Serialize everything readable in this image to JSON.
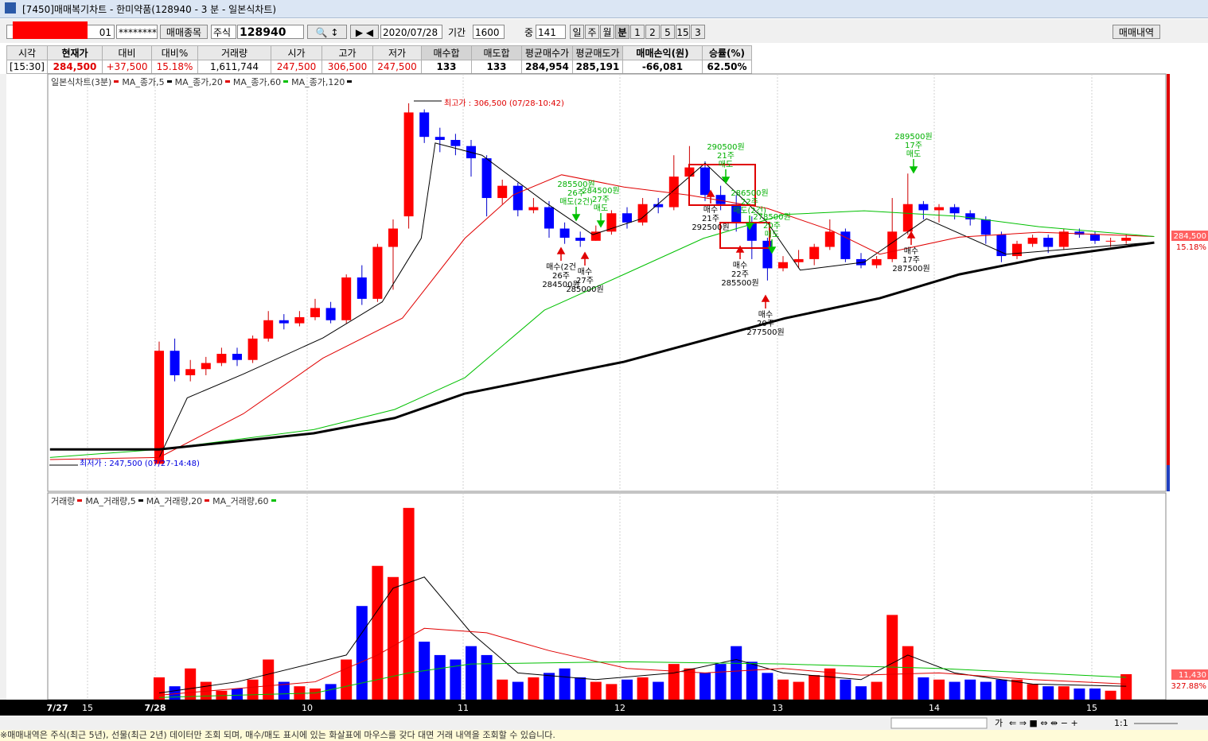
{
  "window": {
    "title": "[7450]매매복기차트 - 한미약품(128940 - 3 분 - 일본식차트)"
  },
  "toolbar": {
    "account": "01",
    "password": "********",
    "stock_button": "매매종목",
    "market": "주식",
    "code": "128940",
    "date": "2020/07/28",
    "period_label": "기간",
    "period": "1600",
    "mid_label": "중",
    "mid": "141",
    "units": [
      "일",
      "주",
      "월",
      "분",
      "1",
      "2",
      "5",
      "15",
      "3"
    ],
    "trade_history": "매매내역"
  },
  "info": {
    "headers": [
      "시각",
      "현재가",
      "대비",
      "대비%",
      "거래량",
      "시가",
      "고가",
      "저가",
      "매수합",
      "매도합",
      "평균매수가",
      "평균매도가",
      "매매손익(원)",
      "승률(%)"
    ],
    "values": [
      "[15:30]",
      "284,500",
      "+37,500",
      "15.18%",
      "1,611,744",
      "247,500",
      "306,500",
      "247,500",
      "133",
      "133",
      "284,954",
      "285,191",
      "-66,081",
      "62.50%"
    ]
  },
  "chart": {
    "type": "candlestick",
    "legend": [
      "일본식차트(3분)",
      "MA_종가,5",
      "MA_종가,20",
      "MA_종가,60",
      "MA_종가,120"
    ],
    "ylim": [
      243000,
      311300
    ],
    "candles": [
      [
        247500,
        267500,
        247500,
        266000
      ],
      [
        266000,
        268000,
        261000,
        262000
      ],
      [
        262000,
        264500,
        261000,
        263000
      ],
      [
        263000,
        265000,
        262000,
        264000
      ],
      [
        264000,
        266500,
        263500,
        265500
      ],
      [
        265500,
        266500,
        263500,
        264500
      ],
      [
        264500,
        268500,
        264000,
        268000
      ],
      [
        268000,
        272500,
        267500,
        271000
      ],
      [
        271000,
        272000,
        269500,
        270500
      ],
      [
        270500,
        272500,
        270000,
        271500
      ],
      [
        271500,
        274500,
        271000,
        273000
      ],
      [
        273000,
        274000,
        270500,
        271000
      ],
      [
        271000,
        278500,
        270500,
        278000
      ],
      [
        278000,
        280000,
        273500,
        274500
      ],
      [
        274500,
        283500,
        274000,
        283000
      ],
      [
        283000,
        287500,
        276000,
        286000
      ],
      [
        288000,
        306500,
        286000,
        305000
      ],
      [
        305000,
        305500,
        300000,
        301000
      ],
      [
        301000,
        302500,
        298500,
        300500
      ],
      [
        300500,
        301500,
        298000,
        299500
      ],
      [
        299500,
        300500,
        294500,
        297500
      ],
      [
        297500,
        298000,
        288000,
        291000
      ],
      [
        291000,
        294000,
        290000,
        293000
      ],
      [
        293000,
        293500,
        288000,
        289000
      ],
      [
        289000,
        291000,
        288500,
        289500
      ],
      [
        289500,
        290500,
        284500,
        286000
      ],
      [
        286000,
        287000,
        283500,
        284500
      ],
      [
        284500,
        285500,
        283000,
        284000
      ],
      [
        284000,
        286500,
        284000,
        285500
      ],
      [
        285500,
        289000,
        285000,
        288500
      ],
      [
        288500,
        289500,
        286000,
        287000
      ],
      [
        287000,
        291000,
        286500,
        290000
      ],
      [
        290000,
        291000,
        288500,
        289500
      ],
      [
        289500,
        298000,
        289000,
        294500
      ],
      [
        294500,
        299500,
        294000,
        296000
      ],
      [
        296000,
        297000,
        290500,
        291500
      ],
      [
        291500,
        293000,
        289000,
        290000
      ],
      [
        290000,
        291500,
        285500,
        287000
      ],
      [
        287000,
        288000,
        281000,
        284000
      ],
      [
        284000,
        284500,
        277500,
        279500
      ],
      [
        279500,
        281500,
        279000,
        280500
      ],
      [
        280500,
        282500,
        279500,
        281000
      ],
      [
        281000,
        283500,
        280000,
        283000
      ],
      [
        283000,
        287500,
        282500,
        285500
      ],
      [
        285500,
        286000,
        280500,
        281000
      ],
      [
        281000,
        282000,
        279500,
        280000
      ],
      [
        280000,
        281500,
        279500,
        281000
      ],
      [
        281000,
        291000,
        280500,
        285500
      ],
      [
        285500,
        295000,
        285000,
        290000
      ],
      [
        290000,
        290500,
        287500,
        289000
      ],
      [
        289000,
        290000,
        287000,
        289500
      ],
      [
        289500,
        290000,
        287500,
        288500
      ],
      [
        288500,
        289000,
        286500,
        287500
      ],
      [
        287500,
        288000,
        283500,
        285000
      ],
      [
        285000,
        285500,
        280500,
        281500
      ],
      [
        281500,
        284000,
        281000,
        283500
      ],
      [
        283500,
        285000,
        283000,
        284500
      ],
      [
        284500,
        285000,
        282000,
        283000
      ],
      [
        283000,
        286000,
        282500,
        285500
      ],
      [
        285500,
        286000,
        284500,
        285000
      ],
      [
        285000,
        285500,
        283500,
        284000
      ],
      [
        284000,
        284500,
        283000,
        284000
      ],
      [
        284000,
        285000,
        283500,
        284500
      ]
    ],
    "ma": [
      {
        "name": "MA_종가,5",
        "color": "#000000",
        "x": [
          0,
          1.8,
          5.4,
          10.5,
          14.3,
          16.8,
          17.7,
          20.7,
          24.8,
          27.8,
          30.9,
          35,
          39,
          41.1,
          45.2,
          49.2,
          54.3,
          63.5
        ],
        "values": [
          248500,
          258300,
          262200,
          268100,
          274000,
          284400,
          300000,
          298000,
          290200,
          285000,
          287600,
          296700,
          287000,
          279200,
          280500,
          287600,
          281800,
          283700
        ]
      },
      {
        "name": "MA_종가,20",
        "color": "#e00000",
        "x": [
          -7,
          0,
          5.4,
          10.5,
          15.6,
          19.6,
          22.7,
          25.8,
          29.8,
          33.9,
          39,
          43.1,
          46.2,
          51.3,
          56.4,
          63.8
        ],
        "values": [
          248200,
          248550,
          255700,
          264800,
          271350,
          284400,
          291500,
          294800,
          292800,
          291500,
          289300,
          285700,
          281800,
          284600,
          285400,
          284700
        ]
      },
      {
        "name": "MA_종가,60",
        "color": "#00c000",
        "x": [
          -7,
          0,
          9.9,
          15.1,
          19.6,
          24.7,
          29.8,
          34.9,
          40.1,
          45.2,
          51.3,
          56.4,
          63.8
        ],
        "values": [
          248550,
          249860,
          253100,
          256400,
          261600,
          272650,
          278500,
          284400,
          288300,
          288900,
          288000,
          286300,
          284700
        ]
      },
      {
        "name": "MA_종가,120",
        "color": "#000000",
        "width": 3,
        "x": [
          -7,
          0,
          9.9,
          15.1,
          19.6,
          29.8,
          40.1,
          46.2,
          51.3,
          56.4,
          63.8
        ],
        "values": [
          249860,
          249860,
          252500,
          255000,
          259000,
          264200,
          271300,
          274600,
          278500,
          281100,
          283700
        ]
      }
    ],
    "high_label": "최고가 : 306,500 (07/28-10:42)",
    "low_label": "최저가 : 247,500 (07/27-14:48)",
    "buys": [
      [
        "매수(2건",
        "26주",
        "284500원"
      ],
      [
        "매수",
        "27주",
        "285000원"
      ],
      [
        "매수",
        "21주",
        "292500원"
      ],
      [
        "매수",
        "22주",
        "285500원"
      ],
      [
        "매수",
        "20주",
        "277500원"
      ],
      [
        "매수",
        "17주",
        "287500원"
      ]
    ],
    "sells": [
      [
        "285500원",
        "26주",
        "매도(2건)"
      ],
      [
        "284500원",
        "27주",
        "매도"
      ],
      [
        "290500원",
        "21주",
        "매도"
      ],
      [
        "286500원",
        "22주",
        "매도(2건)"
      ],
      [
        "278500원",
        "20주",
        "매도"
      ],
      [
        "289500원",
        "17주",
        "매도"
      ]
    ],
    "price_label": "284,500",
    "pct_label": "15.18%"
  },
  "volume": {
    "legend": [
      "거래량",
      "MA_거래량,5",
      "MA_거래량,20",
      "MA_거래량,60"
    ],
    "ylim": [
      0,
      92000
    ],
    "values": [
      10000,
      6000,
      14000,
      8000,
      4000,
      5000,
      9000,
      18000,
      8000,
      6000,
      5000,
      7000,
      18000,
      42000,
      60000,
      55000,
      86000,
      26000,
      20000,
      18000,
      24000,
      20000,
      9000,
      8000,
      10000,
      12000,
      14000,
      10000,
      8000,
      7000,
      9000,
      10000,
      8000,
      16000,
      14000,
      12000,
      16000,
      24000,
      17000,
      12000,
      9000,
      8000,
      11000,
      14000,
      9000,
      6000,
      8000,
      38000,
      24000,
      10000,
      9000,
      8000,
      9000,
      8000,
      9000,
      9000,
      7000,
      6000,
      6000,
      5000,
      5000,
      4000,
      11430
    ],
    "ma": [
      {
        "color": "#000000",
        "x": [
          0,
          5,
          12,
          15,
          17,
          20,
          23,
          28,
          33,
          37,
          40,
          45,
          48,
          51,
          56,
          62
        ],
        "values": [
          3000,
          8000,
          20000,
          50000,
          55000,
          30000,
          12000,
          9000,
          12000,
          18000,
          12000,
          9000,
          20000,
          12000,
          7000,
          6000
        ]
      },
      {
        "color": "#e00000",
        "x": [
          0,
          10,
          14,
          17,
          21,
          25,
          30,
          35,
          40,
          45,
          50,
          56,
          62
        ],
        "values": [
          2000,
          8000,
          20000,
          32000,
          30000,
          22000,
          14000,
          12000,
          14000,
          11000,
          12000,
          9000,
          7000
        ]
      },
      {
        "color": "#00c000",
        "x": [
          0,
          10,
          16,
          20,
          30,
          40,
          50,
          62
        ],
        "values": [
          1000,
          3000,
          12000,
          16000,
          17000,
          16000,
          14000,
          10000
        ]
      }
    ],
    "last_label": "11,430",
    "pct_label": "327.88%"
  },
  "xaxis": {
    "labels": [
      "7/27",
      "15",
      "7/28",
      "10",
      "11",
      "12",
      "13",
      "14",
      "15"
    ]
  },
  "scroll": {
    "labels": [
      "가",
      "1:1"
    ]
  },
  "footer": {
    "text": "※매매내역은 주식(최근 5년), 선물(최근 2년) 데이터만 조회 되며, 매수/매도 표시에 있는 화살표에 마우스를 갖다 대면 거래 내역을 조회할 수 있습니다."
  }
}
